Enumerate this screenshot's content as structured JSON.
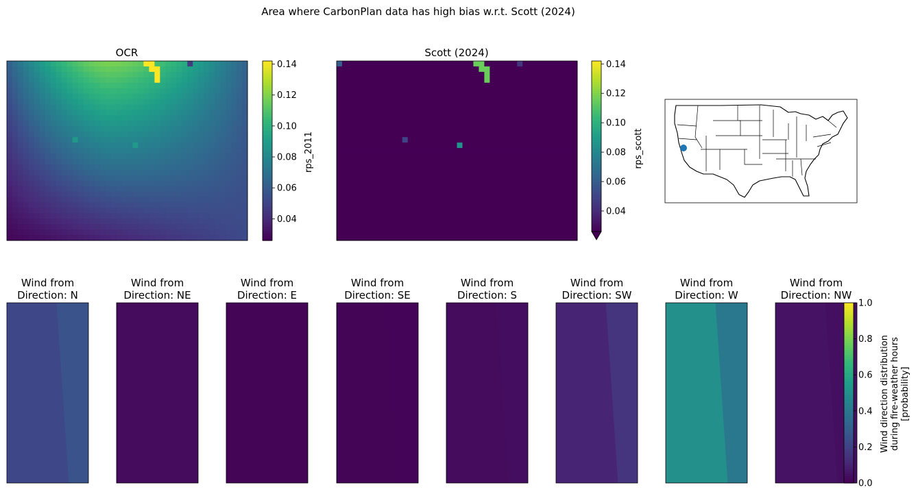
{
  "figure": {
    "suptitle": "Area where CarbonPlan data has high bias w.r.t. Scott (2024)"
  },
  "colors": {
    "viridis": [
      "#440154",
      "#482878",
      "#3e4989",
      "#31688e",
      "#26828e",
      "#1f9e89",
      "#35b779",
      "#6ece58",
      "#b5de2b",
      "#fde725"
    ],
    "map_point": "#1f77b4"
  },
  "chart_data": [
    {
      "type": "heatmap",
      "title": "OCR",
      "colorbar": {
        "label": "rps_2011",
        "range": [
          0.026,
          0.142
        ],
        "ticks": [
          0.04,
          0.06,
          0.08,
          0.1,
          0.12,
          0.14
        ],
        "tick_labels": [
          "0.04",
          "0.06",
          "0.08",
          "0.10",
          "0.12",
          "0.14"
        ]
      },
      "grid": {
        "cols": 44,
        "rows": 33
      },
      "field": {
        "peak": 0.118,
        "peak_col": 0.42,
        "bottom_left": 0.028,
        "bottom_right": 0.052
      },
      "highlight_cells": [
        {
          "col": 25,
          "row": 0,
          "value": 0.142
        },
        {
          "col": 26,
          "row": 0,
          "value": 0.142
        },
        {
          "col": 26,
          "row": 1,
          "value": 0.142
        },
        {
          "col": 27,
          "row": 1,
          "value": 0.142
        },
        {
          "col": 27,
          "row": 2,
          "value": 0.142
        },
        {
          "col": 27,
          "row": 3,
          "value": 0.142
        },
        {
          "col": 33,
          "row": 0,
          "value": 0.047
        },
        {
          "col": 12,
          "row": 14,
          "value": 0.088
        },
        {
          "col": 23,
          "row": 15,
          "value": 0.088
        }
      ]
    },
    {
      "type": "heatmap",
      "title": "Scott (2024)",
      "colorbar": {
        "label": "rps_scott",
        "range": [
          0.026,
          0.142
        ],
        "extend": "min",
        "ticks": [
          0.04,
          0.06,
          0.08,
          0.1,
          0.12,
          0.14
        ],
        "tick_labels": [
          "0.04",
          "0.06",
          "0.08",
          "0.10",
          "0.12",
          "0.14"
        ]
      },
      "grid": {
        "cols": 44,
        "rows": 33
      },
      "background_value": 0.02,
      "highlight_cells": [
        {
          "col": 0,
          "row": 0,
          "value": 0.06
        },
        {
          "col": 25,
          "row": 0,
          "value": 0.115
        },
        {
          "col": 26,
          "row": 0,
          "value": 0.115
        },
        {
          "col": 26,
          "row": 1,
          "value": 0.115
        },
        {
          "col": 27,
          "row": 1,
          "value": 0.115
        },
        {
          "col": 27,
          "row": 2,
          "value": 0.115
        },
        {
          "col": 27,
          "row": 3,
          "value": 0.115
        },
        {
          "col": 33,
          "row": 0,
          "value": 0.045
        },
        {
          "col": 12,
          "row": 14,
          "value": 0.05
        },
        {
          "col": 22,
          "row": 15,
          "value": 0.085
        }
      ]
    },
    {
      "type": "map",
      "region": "contiguous United States",
      "point": {
        "lon": -121.5,
        "lat": 38.5
      }
    },
    {
      "type": "heatmap",
      "title_line1": "Wind from",
      "title_line2": "Direction: N",
      "value_west": 0.22,
      "value_east": 0.26
    },
    {
      "type": "heatmap",
      "title_line1": "Wind from",
      "title_line2": "Direction: NE",
      "value_west": 0.028,
      "value_east": 0.032
    },
    {
      "type": "heatmap",
      "title_line1": "Wind from",
      "title_line2": "Direction: E",
      "value_west": 0.01,
      "value_east": 0.01
    },
    {
      "type": "heatmap",
      "title_line1": "Wind from",
      "title_line2": "Direction: SE",
      "value_west": 0.01,
      "value_east": 0.012
    },
    {
      "type": "heatmap",
      "title_line1": "Wind from",
      "title_line2": "Direction: S",
      "value_west": 0.03,
      "value_east": 0.035
    },
    {
      "type": "heatmap",
      "title_line1": "Wind from",
      "title_line2": "Direction: SW",
      "value_west": 0.1,
      "value_east": 0.15
    },
    {
      "type": "heatmap",
      "title_line1": "Wind from",
      "title_line2": "Direction: W",
      "value_west": 0.5,
      "value_east": 0.4
    },
    {
      "type": "heatmap",
      "title_line1": "Wind from",
      "title_line2": "Direction: NW",
      "value_west": 0.05,
      "value_east": 0.04
    },
    {
      "type": "colorbar",
      "label_line1": "Wind direction distribution",
      "label_line2": "during fire-weather hours",
      "label_line3": "[probability]",
      "range": [
        0,
        1
      ],
      "ticks": [
        0,
        0.2,
        0.4,
        0.6,
        0.8,
        1.0
      ],
      "tick_labels": [
        "0.0",
        "0.2",
        "0.4",
        "0.6",
        "0.8",
        "1.0"
      ]
    }
  ]
}
